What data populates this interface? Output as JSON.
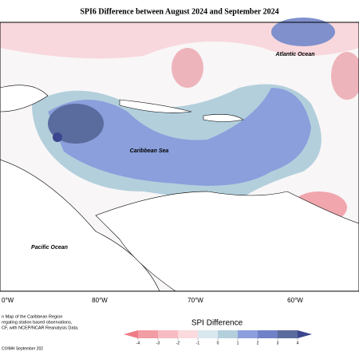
{
  "title": "SPI6 Difference between August 2024 and September 2024",
  "labels": {
    "atlantic": "Atlantic Ocean",
    "caribbean": "Caribbean Sea",
    "pacific": "Pacific Ocean"
  },
  "longitudes": [
    "0°W",
    "80°W",
    "70°W",
    "60°W"
  ],
  "caption": [
    "n Map of the Caribbean Region",
    "regating station based observations,",
    "CF, with NCEP/NCAR Reanalysis Data.",
    "C©IMH September 202"
  ],
  "legend": {
    "title": "SPI Difference",
    "ticks": [
      -4,
      -3,
      -2,
      -1,
      0,
      1,
      2,
      3,
      4
    ],
    "colors": [
      "#ee7b86",
      "#f29ca4",
      "#f6bcc2",
      "#fadadd",
      "#d9e8ee",
      "#b3cfdc",
      "#8a9fdc",
      "#6f82c8",
      "#5a6c9e",
      "#3b468e"
    ]
  }
}
